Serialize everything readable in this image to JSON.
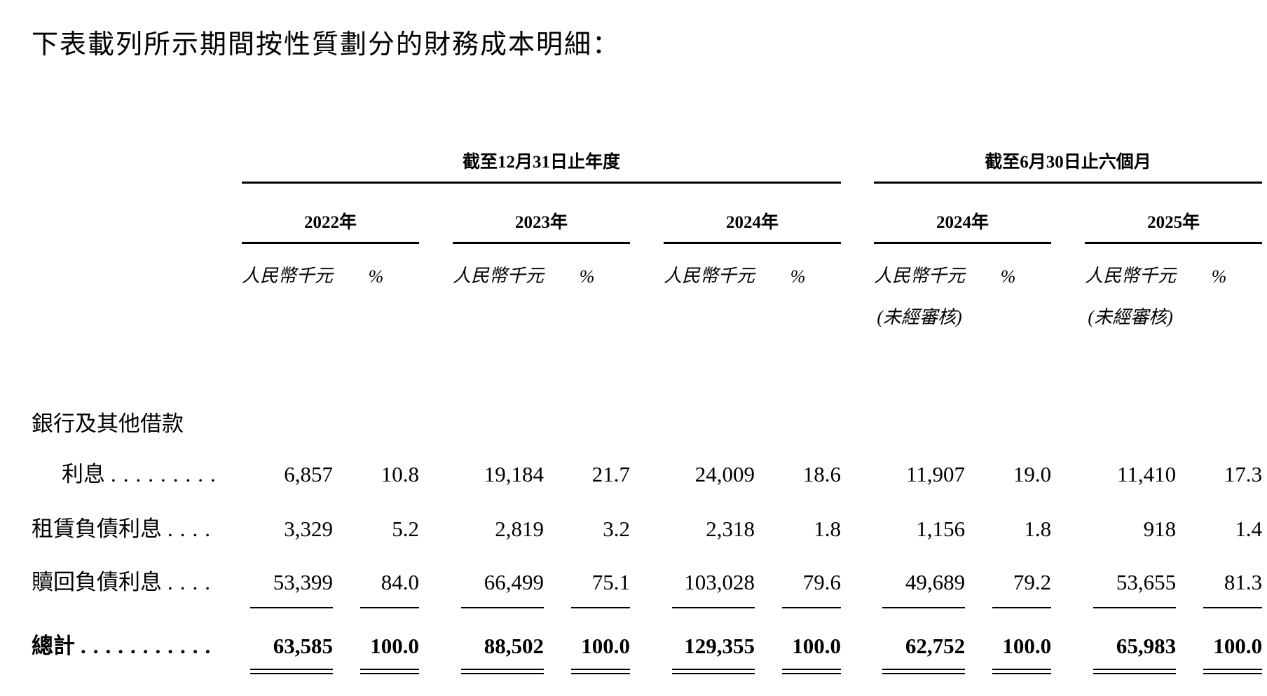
{
  "title": "下表載列所示期間按性質劃分的財務成本明細：",
  "table": {
    "groups": [
      {
        "title": "截至12月31日止年度"
      },
      {
        "title": "截至6月30日止六個月"
      }
    ],
    "columns": [
      {
        "year": "2022年",
        "unit": "人民幣千元",
        "pct": "%",
        "note": ""
      },
      {
        "year": "2023年",
        "unit": "人民幣千元",
        "pct": "%",
        "note": ""
      },
      {
        "year": "2024年",
        "unit": "人民幣千元",
        "pct": "%",
        "note": ""
      },
      {
        "year": "2024年",
        "unit": "人民幣千元",
        "pct": "%",
        "note": "(未經審核)"
      },
      {
        "year": "2025年",
        "unit": "人民幣千元",
        "pct": "%",
        "note": "(未經審核)"
      }
    ],
    "rows": [
      {
        "label": "銀行及其他借款",
        "dots": "",
        "values": [
          "",
          "",
          "",
          "",
          "",
          "",
          "",
          "",
          "",
          ""
        ]
      },
      {
        "label": "利息",
        "dots": ".........",
        "values": [
          "6,857",
          "10.8",
          "19,184",
          "21.7",
          "24,009",
          "18.6",
          "11,907",
          "19.0",
          "11,410",
          "17.3"
        ]
      },
      {
        "label": "租賃負債利息",
        "dots": "....",
        "values": [
          "3,329",
          "5.2",
          "2,819",
          "3.2",
          "2,318",
          "1.8",
          "1,156",
          "1.8",
          "918",
          "1.4"
        ]
      },
      {
        "label": "贖回負債利息",
        "dots": "....",
        "values": [
          "53,399",
          "84.0",
          "66,499",
          "75.1",
          "103,028",
          "79.6",
          "49,689",
          "79.2",
          "53,655",
          "81.3"
        ]
      },
      {
        "label": "總計",
        "dots": "...........",
        "values": [
          "63,585",
          "100.0",
          "88,502",
          "100.0",
          "129,355",
          "100.0",
          "62,752",
          "100.0",
          "65,983",
          "100.0"
        ]
      }
    ]
  }
}
